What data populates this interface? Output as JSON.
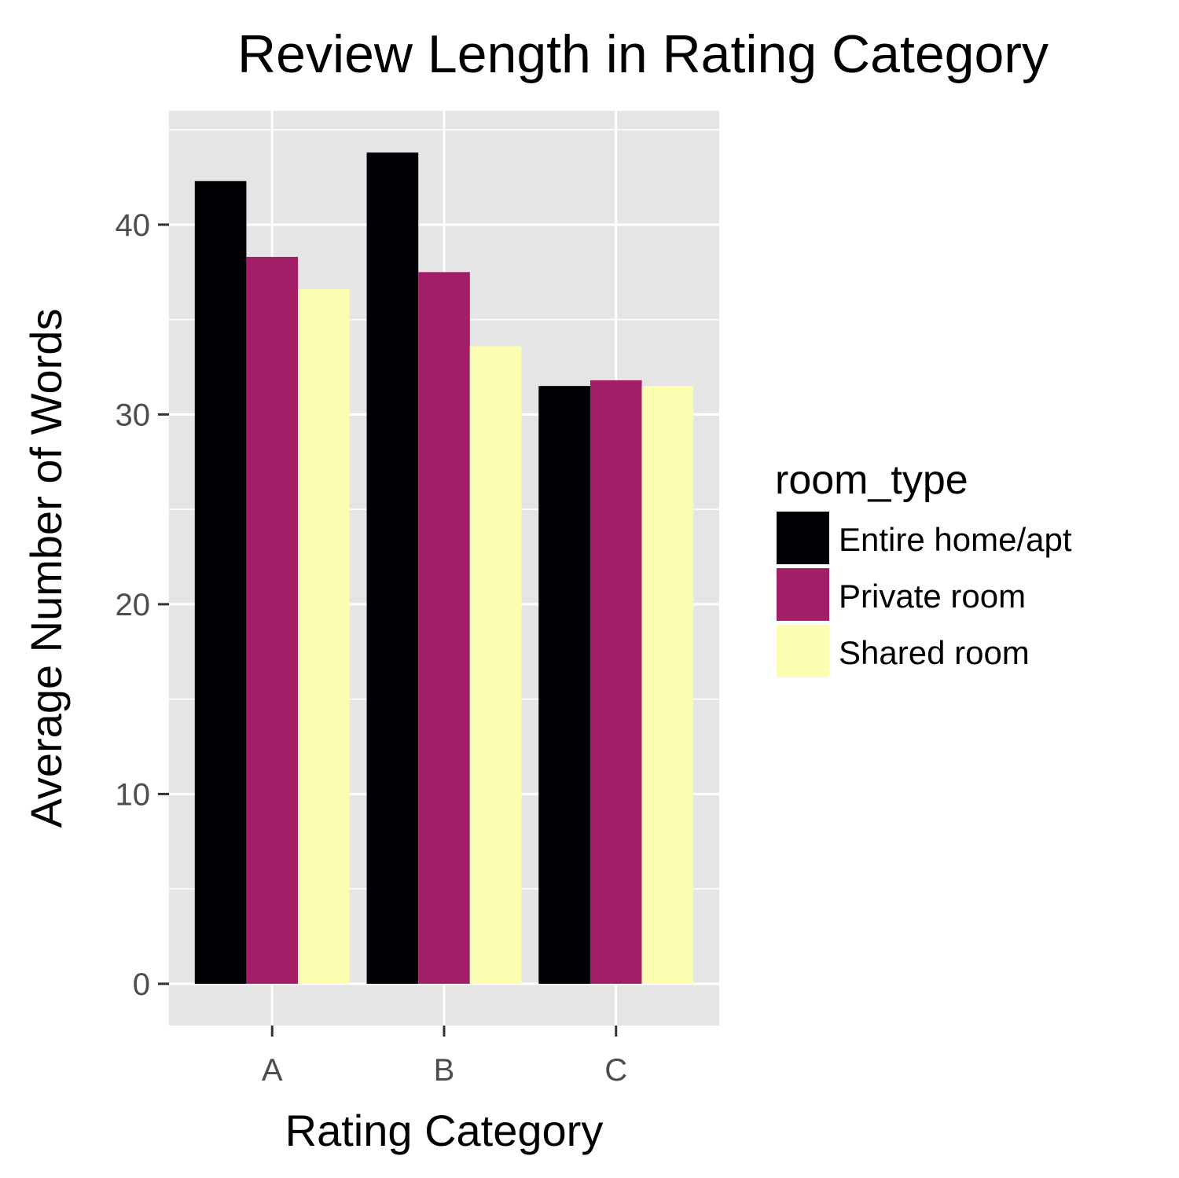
{
  "chart_data": {
    "type": "bar",
    "title": "Review Length in Rating Category",
    "xlabel": "Rating Category",
    "ylabel": "Average Number of Words",
    "categories": [
      "A",
      "B",
      "C"
    ],
    "series": [
      {
        "name": "Entire home/apt",
        "color": "#000004",
        "values": [
          42.3,
          43.8,
          31.5
        ]
      },
      {
        "name": "Private room",
        "color": "#a21f67",
        "values": [
          38.3,
          37.5,
          31.8
        ]
      },
      {
        "name": "Shared room",
        "color": "#fcffb2",
        "values": [
          36.6,
          33.6,
          31.5
        ]
      }
    ],
    "ylim": [
      -2.2,
      46.0
    ],
    "yticks": [
      0,
      10,
      20,
      30,
      40
    ],
    "ytick_labels": [
      "0",
      "10",
      "20",
      "30",
      "40"
    ],
    "grid": true,
    "legend": {
      "title": "room_type",
      "position": "right"
    }
  }
}
